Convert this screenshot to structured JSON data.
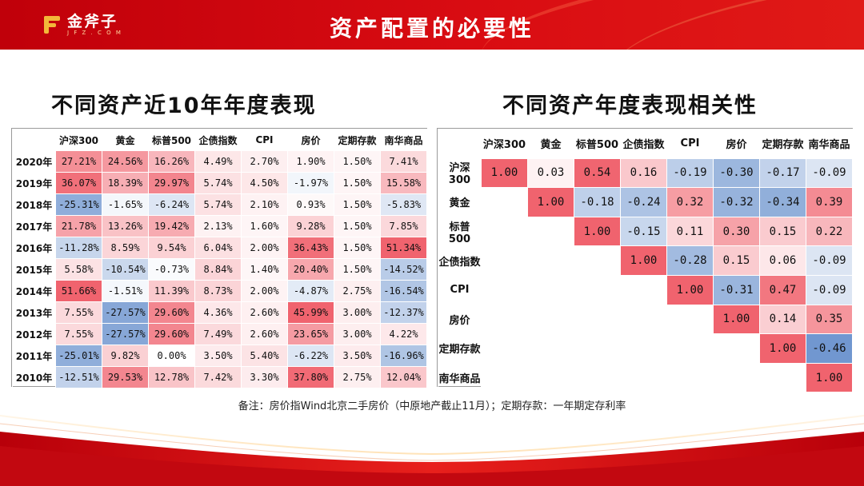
{
  "header": {
    "logo_name": "金斧子",
    "logo_url": "J F Z . C O M",
    "title": "资产配置的必要性"
  },
  "left": {
    "title": "不同资产近10年年度表现",
    "columns": [
      "沪深300",
      "黄金",
      "标普500",
      "企债指数",
      "CPI",
      "房价",
      "定期存款",
      "南华商品"
    ],
    "rows": [
      {
        "year": "2020年",
        "values": [
          "27.21%",
          "24.56%",
          "16.26%",
          "4.49%",
          "2.70%",
          "1.90%",
          "1.50%",
          "7.41%"
        ],
        "nums": [
          27.21,
          24.56,
          16.26,
          4.49,
          2.7,
          1.9,
          1.5,
          7.41
        ]
      },
      {
        "year": "2019年",
        "values": [
          "36.07%",
          "18.39%",
          "29.97%",
          "5.74%",
          "4.50%",
          "-1.97%",
          "1.50%",
          "15.58%"
        ],
        "nums": [
          36.07,
          18.39,
          29.97,
          5.74,
          4.5,
          -1.97,
          1.5,
          15.58
        ]
      },
      {
        "year": "2018年",
        "values": [
          "-25.31%",
          "-1.65%",
          "-6.24%",
          "5.74%",
          "2.10%",
          "0.93%",
          "1.50%",
          "-5.83%"
        ],
        "nums": [
          -25.31,
          -1.65,
          -6.24,
          5.74,
          2.1,
          0.93,
          1.5,
          -5.83
        ]
      },
      {
        "year": "2017年",
        "values": [
          "21.78%",
          "13.26%",
          "19.42%",
          "2.13%",
          "1.60%",
          "9.28%",
          "1.50%",
          "7.85%"
        ],
        "nums": [
          21.78,
          13.26,
          19.42,
          2.13,
          1.6,
          9.28,
          1.5,
          7.85
        ]
      },
      {
        "year": "2016年",
        "values": [
          "-11.28%",
          "8.59%",
          "9.54%",
          "6.04%",
          "2.00%",
          "36.43%",
          "1.50%",
          "51.34%"
        ],
        "nums": [
          -11.28,
          8.59,
          9.54,
          6.04,
          2.0,
          36.43,
          1.5,
          51.34
        ]
      },
      {
        "year": "2015年",
        "values": [
          "5.58%",
          "-10.54%",
          "-0.73%",
          "8.84%",
          "1.40%",
          "20.40%",
          "1.50%",
          "-14.52%"
        ],
        "nums": [
          5.58,
          -10.54,
          -0.73,
          8.84,
          1.4,
          20.4,
          1.5,
          -14.52
        ]
      },
      {
        "year": "2014年",
        "values": [
          "51.66%",
          "-1.51%",
          "11.39%",
          "8.73%",
          "2.00%",
          "-4.87%",
          "2.75%",
          "-16.54%"
        ],
        "nums": [
          51.66,
          -1.51,
          11.39,
          8.73,
          2.0,
          -4.87,
          2.75,
          -16.54
        ]
      },
      {
        "year": "2013年",
        "values": [
          "7.55%",
          "-27.57%",
          "29.60%",
          "4.36%",
          "2.60%",
          "45.99%",
          "3.00%",
          "-12.37%"
        ],
        "nums": [
          7.55,
          -27.57,
          29.6,
          4.36,
          2.6,
          45.99,
          3.0,
          -12.37
        ]
      },
      {
        "year": "2012年",
        "values": [
          "7.55%",
          "-27.57%",
          "29.60%",
          "7.49%",
          "2.60%",
          "23.65%",
          "3.00%",
          "4.22%"
        ],
        "nums": [
          7.55,
          -27.57,
          29.6,
          7.49,
          2.6,
          23.65,
          3.0,
          4.22
        ]
      },
      {
        "year": "2011年",
        "values": [
          "-25.01%",
          "9.82%",
          "0.00%",
          "3.50%",
          "5.40%",
          "-6.22%",
          "3.50%",
          "-16.96%"
        ],
        "nums": [
          -25.01,
          9.82,
          0.0,
          3.5,
          5.4,
          -6.22,
          3.5,
          -16.96
        ]
      },
      {
        "year": "2010年",
        "values": [
          "-12.51%",
          "29.53%",
          "12.78%",
          "7.42%",
          "3.30%",
          "37.80%",
          "2.75%",
          "12.04%"
        ],
        "nums": [
          -12.51,
          29.53,
          12.78,
          7.42,
          3.3,
          37.8,
          2.75,
          12.04
        ]
      }
    ]
  },
  "right": {
    "title": "不同资产年度表现相关性",
    "columns": [
      "沪深300",
      "黄金",
      "标普500",
      "企债指数",
      "CPI",
      "房价",
      "定期存款",
      "南华商品"
    ],
    "rows": [
      {
        "label": "沪深300",
        "values": [
          "1.00",
          "0.03",
          "0.54",
          "0.16",
          "-0.19",
          "-0.30",
          "-0.17",
          "-0.09"
        ]
      },
      {
        "label": "黄金",
        "values": [
          "",
          "1.00",
          "-0.18",
          "-0.24",
          "0.32",
          "-0.32",
          "-0.34",
          "0.39"
        ]
      },
      {
        "label": "标普500",
        "values": [
          "",
          "",
          "1.00",
          "-0.15",
          "0.11",
          "0.30",
          "0.15",
          "0.22"
        ]
      },
      {
        "label": "企债指数",
        "values": [
          "",
          "",
          "",
          "1.00",
          "-0.28",
          "0.15",
          "0.06",
          "-0.09"
        ]
      },
      {
        "label": "CPI",
        "values": [
          "",
          "",
          "",
          "",
          "1.00",
          "-0.31",
          "0.47",
          "-0.09"
        ]
      },
      {
        "label": "房价",
        "values": [
          "",
          "",
          "",
          "",
          "",
          "1.00",
          "0.14",
          "0.35"
        ]
      },
      {
        "label": "定期存款",
        "values": [
          "",
          "",
          "",
          "",
          "",
          "",
          "1.00",
          "-0.46"
        ]
      },
      {
        "label": "南华商品",
        "values": [
          "",
          "",
          "",
          "",
          "",
          "",
          "",
          "1.00"
        ]
      }
    ]
  },
  "note": "备注：房价指Wind北京二手房价（中原地产截止11月）；定期存款：一年期定存利率",
  "colors": {
    "header_red": "#d10a10",
    "positive_strong": "#f0636e",
    "negative_strong": "#5a86c8",
    "neutral": "#ffffff",
    "logo_gold": "#f3b73a"
  }
}
